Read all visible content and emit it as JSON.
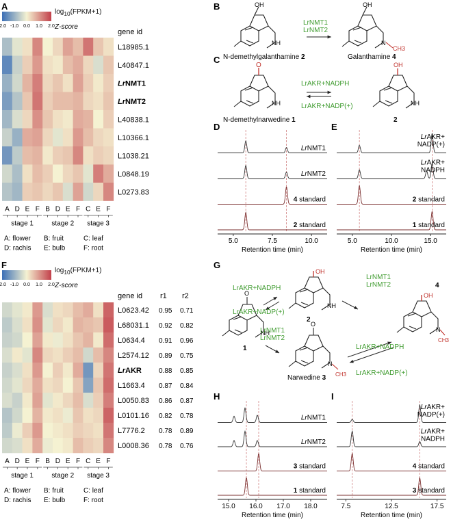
{
  "panel_letters": {
    "A": "A",
    "B": "B",
    "C": "C",
    "D": "D",
    "E": "E",
    "F": "F",
    "G": "G",
    "H": "H",
    "I": "I"
  },
  "heatmap_legend": {
    "title_html": "log<sub>10</sub>(FPKM+1)",
    "title_plain": "log10(FPKM+1)",
    "subtitle": "Z-score",
    "ticks": [
      "-2.0",
      "-1.0",
      "0.0",
      "1.0",
      "2.0"
    ],
    "colors": {
      "low": "#3b6fb6",
      "mid": "#f5f2d2",
      "high": "#c2404a"
    }
  },
  "heatmap_A": {
    "header": "gene id",
    "rows": [
      {
        "id": "L18985.1",
        "bold": false
      },
      {
        "id": "L40847.1",
        "bold": false
      },
      {
        "id": "LrNMT1",
        "bold": true
      },
      {
        "id": "LrNMT2",
        "bold": true
      },
      {
        "id": "L40838.1",
        "bold": false
      },
      {
        "id": "L10366.1",
        "bold": false
      },
      {
        "id": "L1038.21",
        "bold": false
      },
      {
        "id": "L0848.19",
        "bold": false
      },
      {
        "id": "L0273.83",
        "bold": false
      }
    ],
    "columns": [
      "A",
      "D",
      "E",
      "F",
      "B",
      "D",
      "E",
      "F",
      "C",
      "E",
      "F"
    ],
    "stages": [
      "stage 1",
      "stage 2",
      "stage 3"
    ],
    "values": [
      [
        -0.8,
        -0.2,
        0.2,
        1.2,
        0.0,
        0.3,
        0.9,
        0.6,
        1.4,
        0.5,
        0.2
      ],
      [
        -1.6,
        -0.5,
        0.4,
        1.0,
        0.2,
        0.1,
        0.6,
        0.8,
        0.3,
        -0.3,
        0.5
      ],
      [
        -1.0,
        -0.4,
        0.7,
        1.3,
        0.3,
        0.5,
        0.2,
        0.9,
        0.4,
        0.1,
        0.4
      ],
      [
        -1.3,
        -0.7,
        0.5,
        1.4,
        0.4,
        0.6,
        0.6,
        0.7,
        0.3,
        0.2,
        0.5
      ],
      [
        -0.9,
        -0.3,
        0.3,
        1.1,
        0.5,
        0.2,
        0.1,
        0.8,
        0.7,
        0.0,
        0.4
      ],
      [
        -0.5,
        -1.0,
        0.8,
        0.9,
        0.3,
        -0.2,
        0.2,
        1.0,
        0.6,
        0.3,
        0.2
      ],
      [
        -1.4,
        -0.6,
        0.6,
        0.7,
        0.1,
        0.4,
        0.5,
        1.2,
        0.2,
        0.4,
        0.3
      ],
      [
        -0.4,
        -0.8,
        0.2,
        0.6,
        0.4,
        0.0,
        0.3,
        0.5,
        -0.2,
        1.3,
        0.8
      ],
      [
        -0.7,
        -0.9,
        0.4,
        0.5,
        0.3,
        0.5,
        -0.3,
        0.9,
        -0.4,
        0.3,
        1.2
      ]
    ]
  },
  "tissue_legend": [
    "A: flower",
    "B: fruit",
    "C: leaf",
    "D: rachis",
    "E: bulb",
    "F: root"
  ],
  "heatmap_F": {
    "headers": {
      "gene": "gene id",
      "r1": "r1",
      "r2": "r2"
    },
    "rows": [
      {
        "id": "L0623.42",
        "bold": false,
        "r1": "0.95",
        "r2": "0.71"
      },
      {
        "id": "L68031.1",
        "bold": false,
        "r1": "0.92",
        "r2": "0.82"
      },
      {
        "id": "L0634.4",
        "bold": false,
        "r1": "0.91",
        "r2": "0.96"
      },
      {
        "id": "L2574.12",
        "bold": false,
        "r1": "0.89",
        "r2": "0.75"
      },
      {
        "id": "LrAKR",
        "bold": true,
        "r1": "0.88",
        "r2": "0.85"
      },
      {
        "id": "L1663.4",
        "bold": false,
        "r1": "0.87",
        "r2": "0.84"
      },
      {
        "id": "L0050.83",
        "bold": false,
        "r1": "0.86",
        "r2": "0.87"
      },
      {
        "id": "L0101.16",
        "bold": false,
        "r1": "0.82",
        "r2": "0.78"
      },
      {
        "id": "L7776.2",
        "bold": false,
        "r1": "0.78",
        "r2": "0.89"
      },
      {
        "id": "L0008.36",
        "bold": false,
        "r1": "0.78",
        "r2": "0.76"
      }
    ],
    "columns": [
      "A",
      "D",
      "E",
      "F",
      "B",
      "D",
      "E",
      "F",
      "C",
      "E",
      "F"
    ],
    "stages": [
      "stage 1",
      "stage 2",
      "stage 3"
    ],
    "values": [
      [
        -0.4,
        -0.2,
        0.1,
        1.0,
        -0.3,
        0.2,
        0.3,
        0.6,
        0.8,
        0.2,
        1.6
      ],
      [
        -0.6,
        -0.3,
        0.2,
        1.1,
        -0.2,
        0.3,
        0.1,
        0.7,
        0.6,
        0.5,
        1.7
      ],
      [
        -0.5,
        -0.4,
        0.0,
        0.9,
        0.1,
        -0.1,
        0.2,
        0.5,
        0.7,
        0.1,
        1.5
      ],
      [
        -0.3,
        0.1,
        -0.2,
        1.2,
        0.3,
        0.2,
        0.4,
        0.6,
        -0.4,
        0.6,
        1.2
      ],
      [
        -0.5,
        -0.3,
        0.2,
        1.0,
        0.0,
        0.4,
        0.1,
        0.8,
        -1.4,
        0.3,
        1.4
      ],
      [
        -0.4,
        -0.2,
        0.3,
        0.8,
        0.2,
        0.3,
        0.0,
        0.5,
        -1.2,
        0.5,
        1.5
      ],
      [
        -0.3,
        -0.5,
        0.1,
        0.9,
        -0.2,
        0.1,
        0.3,
        0.6,
        -0.3,
        0.4,
        1.3
      ],
      [
        -0.7,
        -0.4,
        0.0,
        0.7,
        0.1,
        0.2,
        -0.1,
        0.5,
        0.2,
        0.3,
        1.6
      ],
      [
        -0.6,
        -0.1,
        0.4,
        1.0,
        0.0,
        0.1,
        0.2,
        0.4,
        0.3,
        0.2,
        1.4
      ],
      [
        -0.4,
        -0.3,
        0.2,
        0.8,
        -0.1,
        0.0,
        0.1,
        0.6,
        0.4,
        0.3,
        1.2
      ]
    ]
  },
  "panel_B": {
    "substrate": "N-demethylgalanthamine",
    "substrate_num": "2",
    "product": "Galanthamine",
    "product_num": "4",
    "enzyme1": "LrNMT1",
    "enzyme2": "LrNMT2",
    "oh": "OH",
    "ch3": "CH3",
    "nh": "NH",
    "n": "N"
  },
  "panel_C": {
    "substrate": "N-demethylnarwedine",
    "substrate_num": "1",
    "product_num": "2",
    "forward": "LrAKR+NADPH",
    "reverse": "LrAKR+NADP(+)",
    "o": "O",
    "oh": "OH",
    "nh": "NH"
  },
  "panel_D": {
    "traces": [
      {
        "label": "LrNMT1",
        "peaks": [
          [
            5.8,
            0.55
          ],
          [
            8.4,
            0.25
          ]
        ]
      },
      {
        "label": "LrNMT2",
        "peaks": [
          [
            5.8,
            0.6
          ],
          [
            8.4,
            0.3
          ]
        ]
      },
      {
        "label": "4 standard",
        "peaks": [
          [
            8.4,
            0.8
          ]
        ]
      },
      {
        "label": "2 standard",
        "peaks": [
          [
            5.8,
            0.8
          ]
        ]
      }
    ],
    "xlim": [
      4.0,
      11.0
    ],
    "ticks": [
      "5.0",
      "7.5",
      "10.0"
    ],
    "tick_values": [
      5.0,
      7.5,
      10.0
    ],
    "xlabel": "Retention time (min)",
    "dashed": [
      5.8,
      8.4
    ]
  },
  "panel_E": {
    "traces": [
      {
        "label": "LrAKR+",
        "label2": "NADP(+)",
        "peaks": [
          [
            5.9,
            0.35
          ],
          [
            15.2,
            0.9
          ]
        ]
      },
      {
        "label": "LrAKR+",
        "label2": "NADPH",
        "peaks": [
          [
            5.9,
            0.4
          ],
          [
            14.5,
            0.35
          ],
          [
            15.2,
            0.7
          ]
        ]
      },
      {
        "label": "2 standard",
        "label2": "",
        "peaks": [
          [
            5.9,
            0.85
          ]
        ]
      },
      {
        "label": "1 standard",
        "label2": "",
        "peaks": [
          [
            15.2,
            0.85
          ]
        ]
      }
    ],
    "xlim": [
      3.0,
      17.0
    ],
    "ticks": [
      "5.0",
      "10.0",
      "15.0"
    ],
    "tick_values": [
      5.0,
      10.0,
      15.0
    ],
    "xlabel": "Retention time (min)",
    "dashed": [
      5.9,
      15.2
    ]
  },
  "panel_G": {
    "num1": "1",
    "num2": "2",
    "num3": "3",
    "num4": "4",
    "narwedine": "Narwedine",
    "akr_fwd": "LrAKR+NADPH",
    "akr_rev": "LrAKR+NADP(+)",
    "nmt1": "LrNMT1",
    "nmt2": "LrNMT2",
    "o": "O",
    "oh": "OH",
    "nh": "NH",
    "n": "N",
    "ch3": "CH3"
  },
  "panel_H": {
    "traces": [
      {
        "label": "LrNMT1",
        "peaks": [
          [
            15.2,
            0.3
          ],
          [
            15.6,
            0.7
          ],
          [
            16.05,
            0.35
          ]
        ]
      },
      {
        "label": "LrNMT2",
        "peaks": [
          [
            15.2,
            0.3
          ],
          [
            15.6,
            0.75
          ],
          [
            16.05,
            0.3
          ]
        ]
      },
      {
        "label": "3 standard",
        "peaks": [
          [
            16.1,
            0.85
          ]
        ]
      },
      {
        "label": "1 standard",
        "peaks": [
          [
            15.65,
            0.85
          ]
        ]
      }
    ],
    "xlim": [
      14.6,
      18.6
    ],
    "ticks": [
      "15.0",
      "16.0",
      "17.0",
      "18.0"
    ],
    "tick_values": [
      15.0,
      16.0,
      17.0,
      18.0
    ],
    "xlabel": "Retention time (min)",
    "dashed": [
      15.65,
      16.1
    ]
  },
  "panel_I": {
    "traces": [
      {
        "label": "LrAKR+",
        "label2": "NADP(+)",
        "peaks": [
          [
            8.2,
            0.15
          ],
          [
            15.6,
            0.85
          ]
        ]
      },
      {
        "label": "LrAKR+",
        "label2": "NADPH",
        "peaks": [
          [
            8.2,
            0.75
          ],
          [
            15.6,
            0.25
          ]
        ]
      },
      {
        "label": "4 standard",
        "label2": "",
        "peaks": [
          [
            8.2,
            0.85
          ]
        ]
      },
      {
        "label": "3 standard",
        "label2": "",
        "peaks": [
          [
            15.6,
            0.85
          ]
        ]
      }
    ],
    "xlim": [
      6.5,
      18.5
    ],
    "ticks": [
      "7.5",
      "12.5",
      "17.5"
    ],
    "tick_values": [
      7.5,
      12.5,
      17.5
    ],
    "xlabel": "Retention time (min)",
    "dashed": [
      8.2,
      15.6
    ]
  }
}
